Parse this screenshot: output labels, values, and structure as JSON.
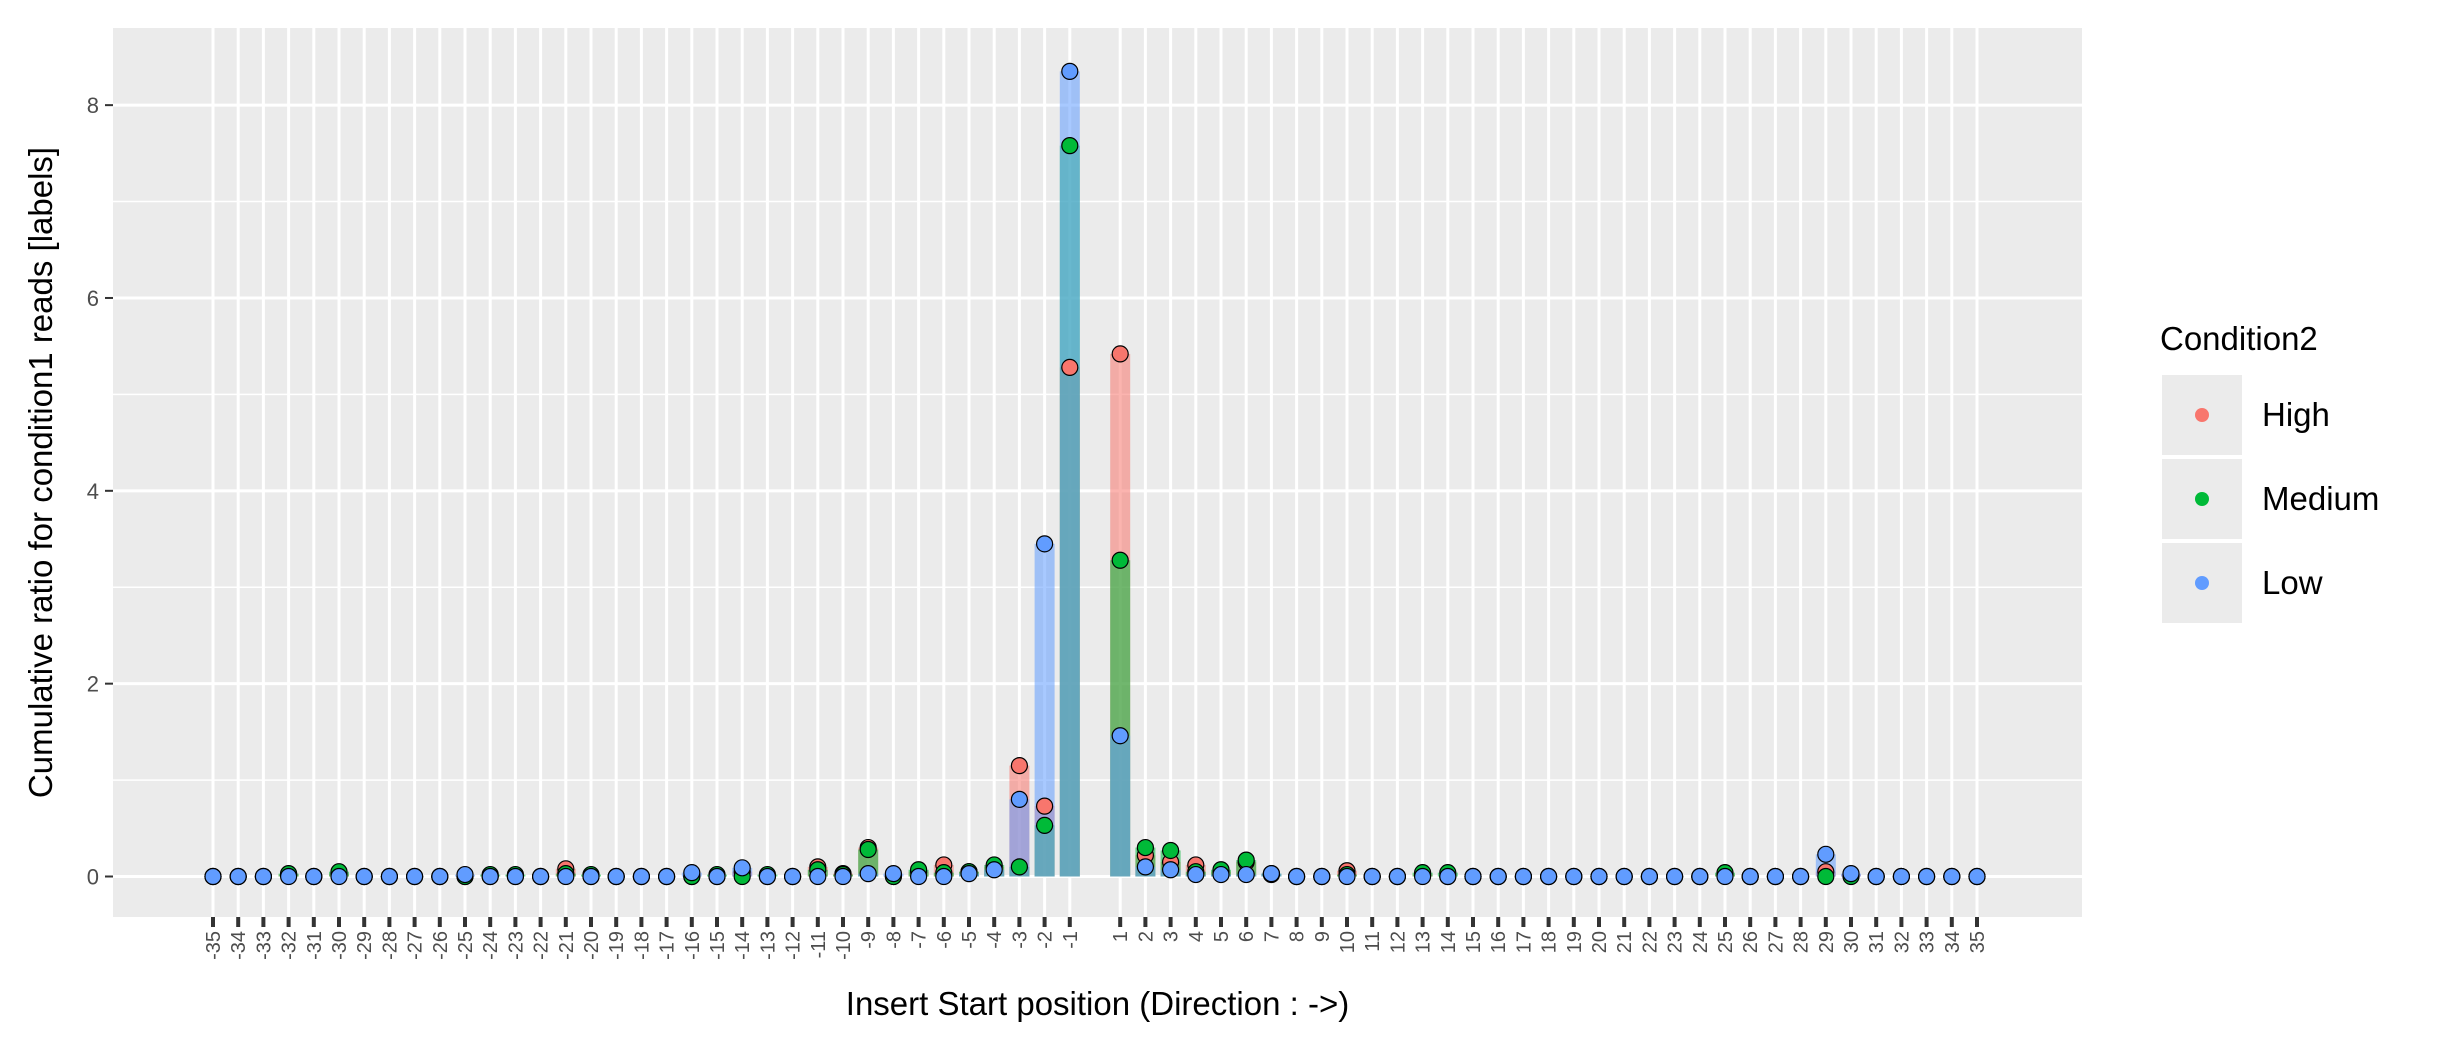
{
  "chart_data": {
    "type": "bar",
    "xlabel": "Insert Start position (Direction : ->)",
    "ylabel": "Cumulative ratio for condition1 reads [labels]",
    "ylim": [
      -0.42,
      8.8
    ],
    "yticks": [
      0,
      2,
      4,
      6,
      8
    ],
    "grid": true,
    "legend_position": "right",
    "legend_title": "Condition2",
    "categories": [
      "-35",
      "-34",
      "-33",
      "-32",
      "-31",
      "-30",
      "-29",
      "-28",
      "-27",
      "-26",
      "-25",
      "-24",
      "-23",
      "-22",
      "-21",
      "-20",
      "-19",
      "-18",
      "-17",
      "-16",
      "-15",
      "-14",
      "-13",
      "-12",
      "-11",
      "-10",
      "-9",
      "-8",
      "-7",
      "-6",
      "-5",
      "-4",
      "-3",
      "-2",
      "-1",
      "1",
      "2",
      "3",
      "4",
      "5",
      "6",
      "7",
      "8",
      "9",
      "10",
      "11",
      "12",
      "13",
      "14",
      "15",
      "16",
      "17",
      "18",
      "19",
      "20",
      "21",
      "22",
      "23",
      "24",
      "25",
      "26",
      "27",
      "28",
      "29",
      "30",
      "31",
      "32",
      "33",
      "34",
      "35"
    ],
    "series": [
      {
        "name": "High",
        "color": "#F8766D",
        "values": [
          0,
          0,
          0,
          0.02,
          0,
          0.03,
          0,
          0,
          0,
          0,
          0,
          0,
          0,
          0,
          0.08,
          0,
          0,
          0,
          0,
          0,
          0,
          0.05,
          0,
          0,
          0.1,
          0.03,
          0.3,
          0,
          0.05,
          0.12,
          0.05,
          0.1,
          1.15,
          0.73,
          5.28,
          5.42,
          0.22,
          0.15,
          0.12,
          0.05,
          0.15,
          0.02,
          0,
          0,
          0.06,
          0,
          0,
          0.02,
          0,
          0,
          0,
          0,
          0,
          0,
          0,
          0,
          0,
          0,
          0,
          0.02,
          0,
          0,
          0,
          0.05,
          0.02,
          0,
          0,
          0,
          0,
          0
        ]
      },
      {
        "name": "Medium",
        "color": "#00BA38",
        "values": [
          0,
          0,
          0,
          0.03,
          0,
          0.05,
          0,
          0,
          0,
          0,
          0,
          0.02,
          0.02,
          0,
          0.03,
          0.02,
          0,
          0,
          0,
          0,
          0.02,
          0,
          0.02,
          0,
          0.07,
          0.02,
          0.28,
          0,
          0.07,
          0.04,
          0.05,
          0.12,
          0.1,
          0.53,
          7.58,
          3.28,
          0.3,
          0.27,
          0.05,
          0.07,
          0.17,
          0.03,
          0,
          0,
          0.02,
          0,
          0,
          0.04,
          0.04,
          0,
          0,
          0,
          0,
          0,
          0,
          0,
          0,
          0,
          0,
          0.04,
          0,
          0,
          0,
          0,
          0,
          0,
          0,
          0,
          0,
          0
        ]
      },
      {
        "name": "Low",
        "color": "#619CFF",
        "values": [
          0,
          0,
          0,
          0,
          0,
          0,
          0,
          0,
          0,
          0,
          0.02,
          0,
          0,
          0,
          0,
          0,
          0,
          0,
          0,
          0.04,
          0,
          0.09,
          0,
          0,
          0,
          0,
          0.03,
          0.03,
          0,
          0,
          0.03,
          0.07,
          0.8,
          3.45,
          8.35,
          1.46,
          0.1,
          0.07,
          0.02,
          0.02,
          0.02,
          0.03,
          0,
          0,
          0,
          0,
          0,
          0,
          0,
          0,
          0,
          0,
          0,
          0,
          0,
          0,
          0,
          0,
          0,
          0,
          0,
          0,
          0,
          0.23,
          0.03,
          0,
          0,
          0,
          0,
          0
        ]
      }
    ]
  }
}
